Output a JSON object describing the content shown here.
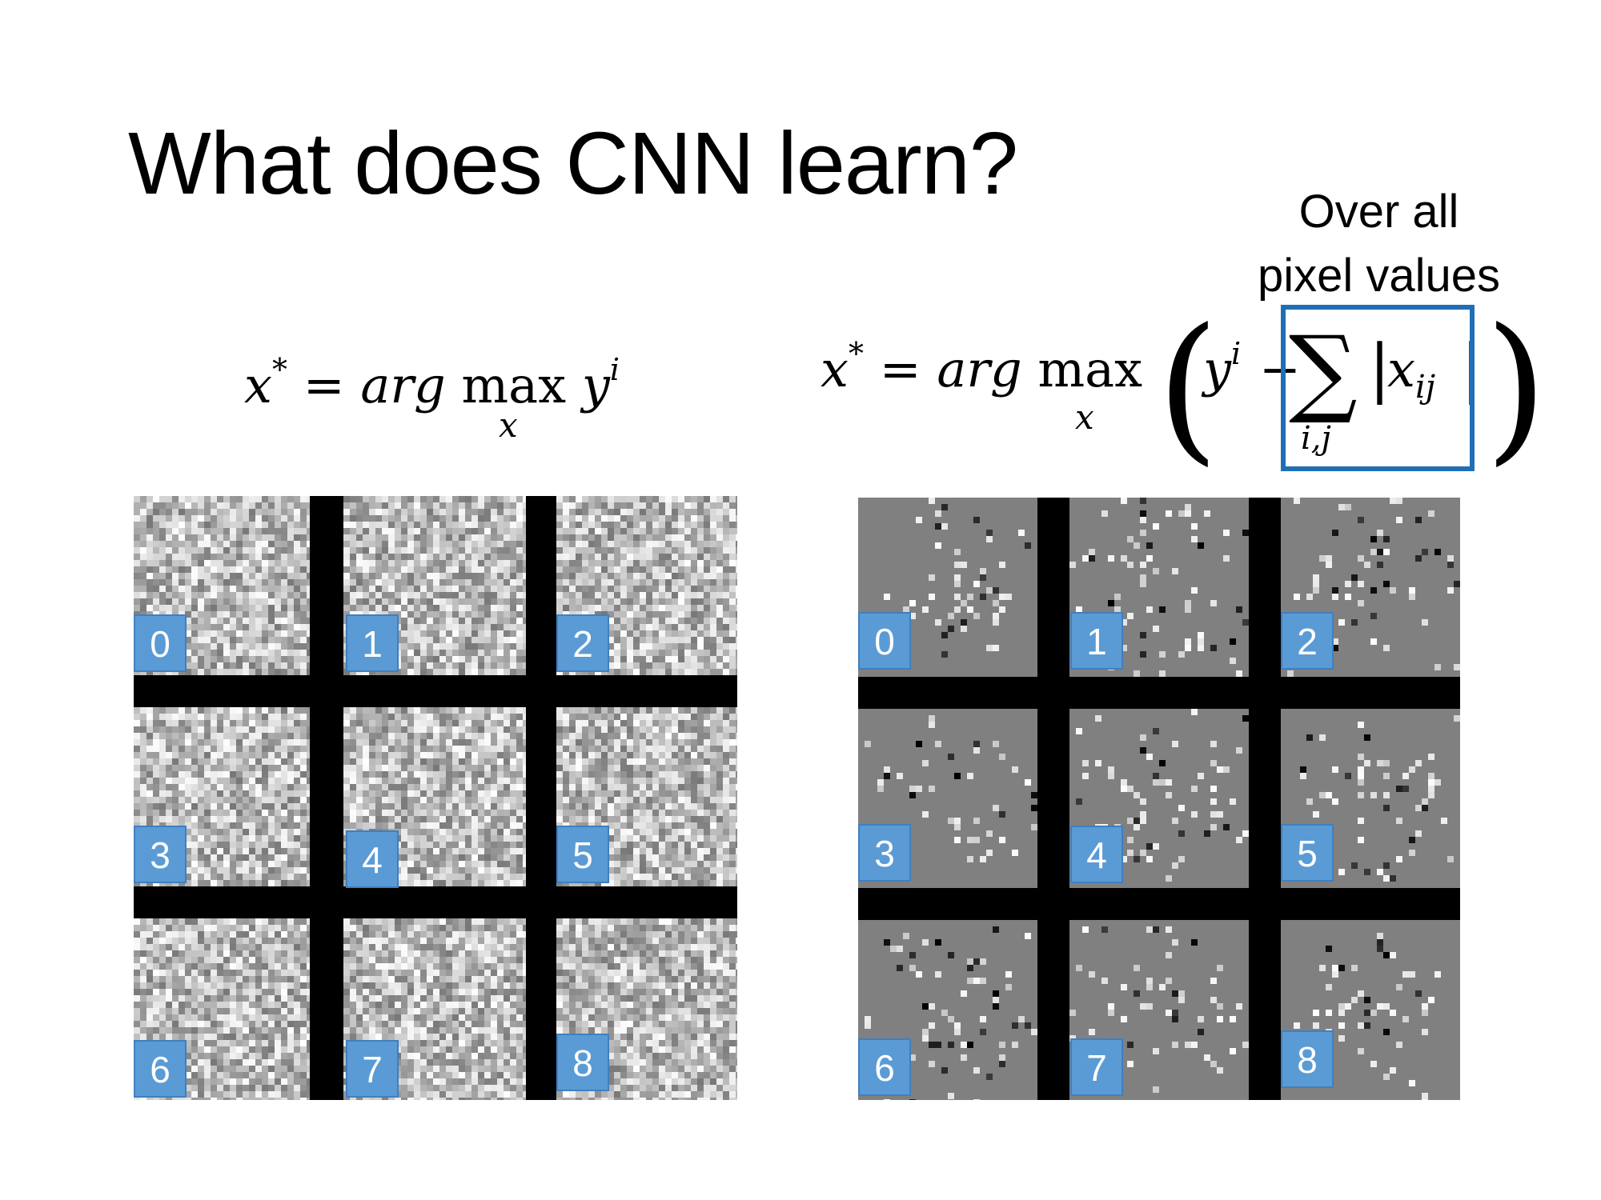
{
  "slide": {
    "title": "What does CNN learn?",
    "note_line1": "Over all",
    "note_line2": "pixel values"
  },
  "equations": {
    "eq1": {
      "lhs": "x",
      "star": "*",
      "equals": "=",
      "arg": "arg",
      "max": "max",
      "under": "x",
      "y": "y",
      "sup": "i"
    },
    "eq2": {
      "lhs": "x",
      "star": "*",
      "equals": "=",
      "arg": "arg",
      "max": "max",
      "under": "x",
      "open": "(",
      "y": "y",
      "sup": "i",
      "minus": "−",
      "sigma": "∑",
      "sigma_sub": "i,j",
      "abs_open": "|",
      "xij": "x",
      "ij": "ij",
      "abs_close": "|",
      "close": ")"
    },
    "highlight_color": "#1f6fb6"
  },
  "left_grid": {
    "style": "uniform-noise",
    "labels": [
      "0",
      "1",
      "2",
      "3",
      "4",
      "5",
      "6",
      "7",
      "8"
    ]
  },
  "right_grid": {
    "style": "sparse-pixels-on-gray",
    "labels": [
      "0",
      "1",
      "2",
      "3",
      "4",
      "5",
      "6",
      "7",
      "8"
    ]
  },
  "colors": {
    "label_fill": "#5b9bd5",
    "label_text": "#ffffff",
    "separator": "#000000"
  }
}
